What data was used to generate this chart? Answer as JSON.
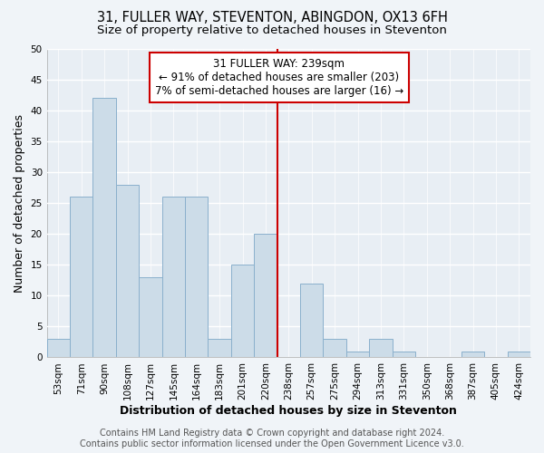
{
  "title": "31, FULLER WAY, STEVENTON, ABINGDON, OX13 6FH",
  "subtitle": "Size of property relative to detached houses in Steventon",
  "xlabel": "Distribution of detached houses by size in Steventon",
  "ylabel": "Number of detached properties",
  "bin_labels": [
    "53sqm",
    "71sqm",
    "90sqm",
    "108sqm",
    "127sqm",
    "145sqm",
    "164sqm",
    "183sqm",
    "201sqm",
    "220sqm",
    "238sqm",
    "257sqm",
    "275sqm",
    "294sqm",
    "313sqm",
    "331sqm",
    "350sqm",
    "368sqm",
    "387sqm",
    "405sqm",
    "424sqm"
  ],
  "bar_values": [
    3,
    26,
    42,
    28,
    13,
    26,
    26,
    3,
    15,
    20,
    0,
    12,
    3,
    1,
    3,
    1,
    0,
    0,
    1,
    0,
    1
  ],
  "bar_color": "#ccdce8",
  "bar_edge_color": "#8ab0cc",
  "ylim": [
    0,
    50
  ],
  "yticks": [
    0,
    5,
    10,
    15,
    20,
    25,
    30,
    35,
    40,
    45,
    50
  ],
  "property_line_bin_index": 10,
  "property_line_color": "#cc0000",
  "annotation_box_text_line1": "31 FULLER WAY: 239sqm",
  "annotation_box_text_line2": "← 91% of detached houses are smaller (203)",
  "annotation_box_text_line3": "7% of semi-detached houses are larger (16) →",
  "annotation_box_color": "#ffffff",
  "annotation_box_edge_color": "#cc0000",
  "footer_line1": "Contains HM Land Registry data © Crown copyright and database right 2024.",
  "footer_line2": "Contains public sector information licensed under the Open Government Licence v3.0.",
  "plot_bg_color": "#e8eef4",
  "fig_bg_color": "#f0f4f8",
  "grid_color": "#ffffff",
  "title_fontsize": 10.5,
  "subtitle_fontsize": 9.5,
  "axis_label_fontsize": 9,
  "tick_fontsize": 7.5,
  "annotation_fontsize": 8.5,
  "footer_fontsize": 7
}
